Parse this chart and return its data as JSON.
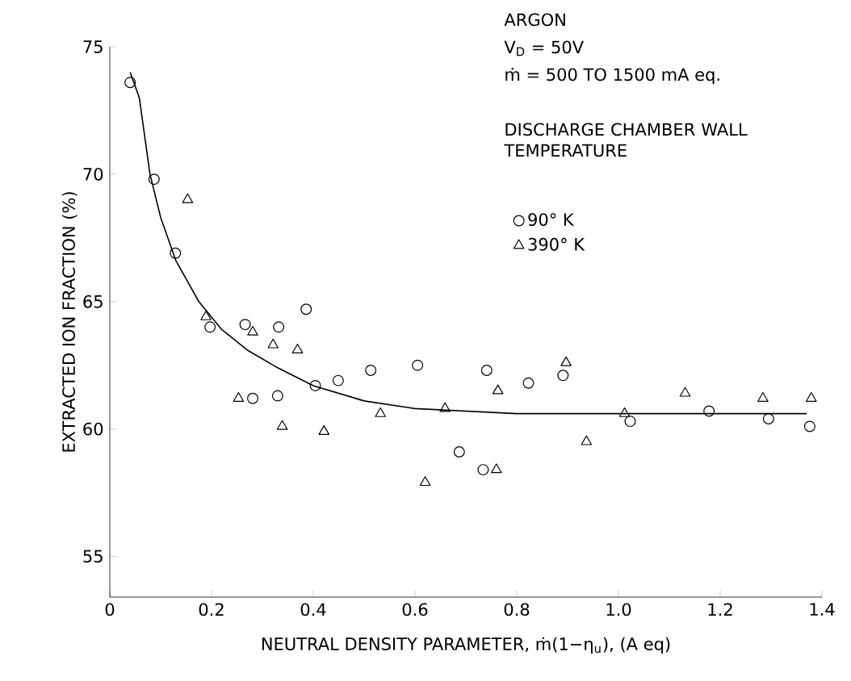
{
  "chart_data": {
    "type": "scatter",
    "xlabel": "NEUTRAL DENSITY PARAMETER, ṁ(1−η$_{u}$), (A eq)",
    "ylabel": "EXTRACTED ION FRACTION (%)",
    "annotations": [
      "ARGON",
      "V$_{D}$ = 50V",
      "ṁ = 500 TO 1500 mA eq."
    ],
    "legend_title": "DISCHARGE CHAMBER WALL TEMPERATURE",
    "legend": "top right",
    "xlim": [
      0,
      1.4
    ],
    "ylim": [
      53.4,
      75
    ],
    "xticks": [
      0,
      0.2,
      0.4,
      0.6,
      0.8,
      {
        "value": 1,
        "label": "1.0"
      },
      1.2,
      1.4
    ],
    "yticks": [
      55,
      60,
      65,
      70,
      75
    ],
    "series": [
      {
        "name": "90° K",
        "color": "#000000",
        "marker": "circle",
        "x": [
          0.04,
          0.087,
          0.129,
          0.197,
          0.266,
          0.281,
          0.332,
          0.33,
          0.386,
          0.404,
          0.449,
          0.513,
          0.605,
          0.687,
          0.734,
          0.741,
          0.823,
          0.891,
          1.023,
          1.178,
          1.295,
          1.376
        ],
        "values": [
          73.6,
          69.8,
          66.9,
          64.0,
          64.1,
          61.2,
          64.0,
          61.3,
          64.7,
          61.7,
          61.9,
          62.3,
          62.5,
          59.1,
          58.4,
          62.3,
          61.8,
          62.1,
          60.3,
          60.7,
          60.4,
          60.1
        ]
      },
      {
        "name": "390° K",
        "color": "#000000",
        "marker": "triangle",
        "x": [
          0.153,
          0.189,
          0.253,
          0.281,
          0.321,
          0.339,
          0.369,
          0.421,
          0.532,
          0.62,
          0.659,
          0.76,
          0.763,
          0.897,
          0.937,
          1.012,
          1.131,
          1.284,
          1.379
        ],
        "values": [
          69.0,
          64.4,
          61.2,
          63.8,
          63.3,
          60.1,
          63.1,
          59.9,
          60.6,
          57.9,
          60.8,
          58.4,
          61.5,
          62.6,
          59.5,
          60.6,
          61.4,
          61.2,
          61.2
        ]
      },
      {
        "type": "line",
        "color": "#000000",
        "marker": "none",
        "x": [
          0.04,
          0.058,
          0.079,
          0.1,
          0.13,
          0.175,
          0.22,
          0.27,
          0.33,
          0.4,
          0.5,
          0.6,
          0.8,
          1.0,
          1.2,
          1.37
        ],
        "values": [
          74.0,
          73.0,
          70.0,
          68.3,
          66.6,
          65.0,
          63.9,
          63.1,
          62.4,
          61.7,
          61.1,
          60.8,
          60.6,
          60.6,
          60.6,
          60.6
        ]
      }
    ]
  }
}
